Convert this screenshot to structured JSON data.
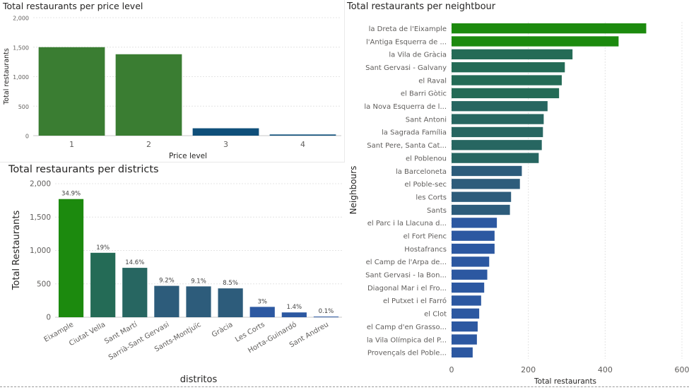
{
  "chart_data": [
    {
      "id": "price",
      "type": "bar",
      "title": "Total restaurants per price level",
      "xlabel": "Price level",
      "ylabel": "Total restaurants",
      "categories": [
        "1",
        "2",
        "3",
        "4"
      ],
      "values": [
        1500,
        1380,
        125,
        20
      ],
      "ylim": [
        0,
        2000
      ],
      "yticks": [
        0,
        500,
        1000,
        1500,
        2000
      ],
      "ytick_labels": [
        "0",
        "500",
        "1,000",
        "1,500",
        "2,000"
      ],
      "colors": [
        "#3a7d32",
        "#3a7d32",
        "#0f4f7a",
        "#0f4f7a"
      ],
      "grid": true
    },
    {
      "id": "districts",
      "type": "bar",
      "title": "Total restaurants per districts",
      "xlabel": "distritos",
      "ylabel": "Total Restaurants",
      "categories": [
        "Eixample",
        "Ciutat Vella",
        "Sant Martí",
        "Sarrià-Sant Gervasi",
        "Sants-Montjuïc",
        "Gràcia",
        "Les Corts",
        "Horta-Guinardó",
        "Sant Andreu"
      ],
      "values": [
        1770,
        965,
        740,
        470,
        462,
        432,
        155,
        72,
        10
      ],
      "data_labels": [
        "34.9%",
        "19%",
        "14.6%",
        "9.2%",
        "9.1%",
        "8.5%",
        "3%",
        "1.4%",
        "0.1%"
      ],
      "ylim": [
        0,
        2000
      ],
      "yticks": [
        0,
        500,
        1000,
        1500,
        2000
      ],
      "ytick_labels": [
        "0",
        "500",
        "1,000",
        "1,500",
        "2,000"
      ],
      "colors": [
        "#1c8a0e",
        "#246b56",
        "#276661",
        "#2d5c7b",
        "#2d5c7b",
        "#2d5c7b",
        "#2c58a1",
        "#2c58a1",
        "#2c58a1"
      ],
      "grid": true
    },
    {
      "id": "neighbours",
      "type": "bar",
      "orientation": "horizontal",
      "title": "Total restaurants per neightbour",
      "xlabel": "Total restaurants",
      "ylabel": "Neighbours",
      "categories": [
        "la Dreta de l'Eixample",
        "l'Antiga Esquerra de ...",
        "la Vila de Gràcia",
        "Sant Gervasi - Galvany",
        "el Raval",
        "el Barri Gòtic",
        "la Nova Esquerra de l...",
        "Sant Antoni",
        "la Sagrada Família",
        "Sant Pere, Santa Cat...",
        "el Poblenou",
        "la Barceloneta",
        "el Poble-sec",
        "les Corts",
        "Sants",
        "el Parc i la Llacuna d...",
        "el Fort Pienc",
        "Hostafrancs",
        "el Camp de l'Arpa de...",
        "Sant Gervasi - la Bon...",
        "Diagonal Mar i el Fro...",
        "el Putxet i el Farró",
        "el Clot",
        "el Camp d'en Grasso...",
        "la Vila Olímpica del P...",
        "Provençals del Poble..."
      ],
      "values": [
        507,
        435,
        315,
        295,
        287,
        280,
        250,
        240,
        238,
        235,
        227,
        183,
        178,
        155,
        152,
        118,
        112,
        112,
        98,
        93,
        85,
        77,
        72,
        68,
        66,
        55
      ],
      "xlim": [
        0,
        600
      ],
      "xticks": [
        0,
        200,
        400,
        600
      ],
      "xtick_labels": [
        "0",
        "200",
        "400",
        "600"
      ],
      "colors": [
        "#1c8a0e",
        "#1c8a0e",
        "#246b56",
        "#246b56",
        "#246b56",
        "#246b56",
        "#276661",
        "#276661",
        "#276661",
        "#276661",
        "#276661",
        "#2d5c7b",
        "#2d5c7b",
        "#2d5c7b",
        "#2d5c7b",
        "#2c58a1",
        "#2c58a1",
        "#2c58a1",
        "#2c58a1",
        "#2c58a1",
        "#2c58a1",
        "#2c58a1",
        "#2c58a1",
        "#2c58a1",
        "#2c58a1",
        "#2c58a1"
      ],
      "grid": true
    }
  ]
}
